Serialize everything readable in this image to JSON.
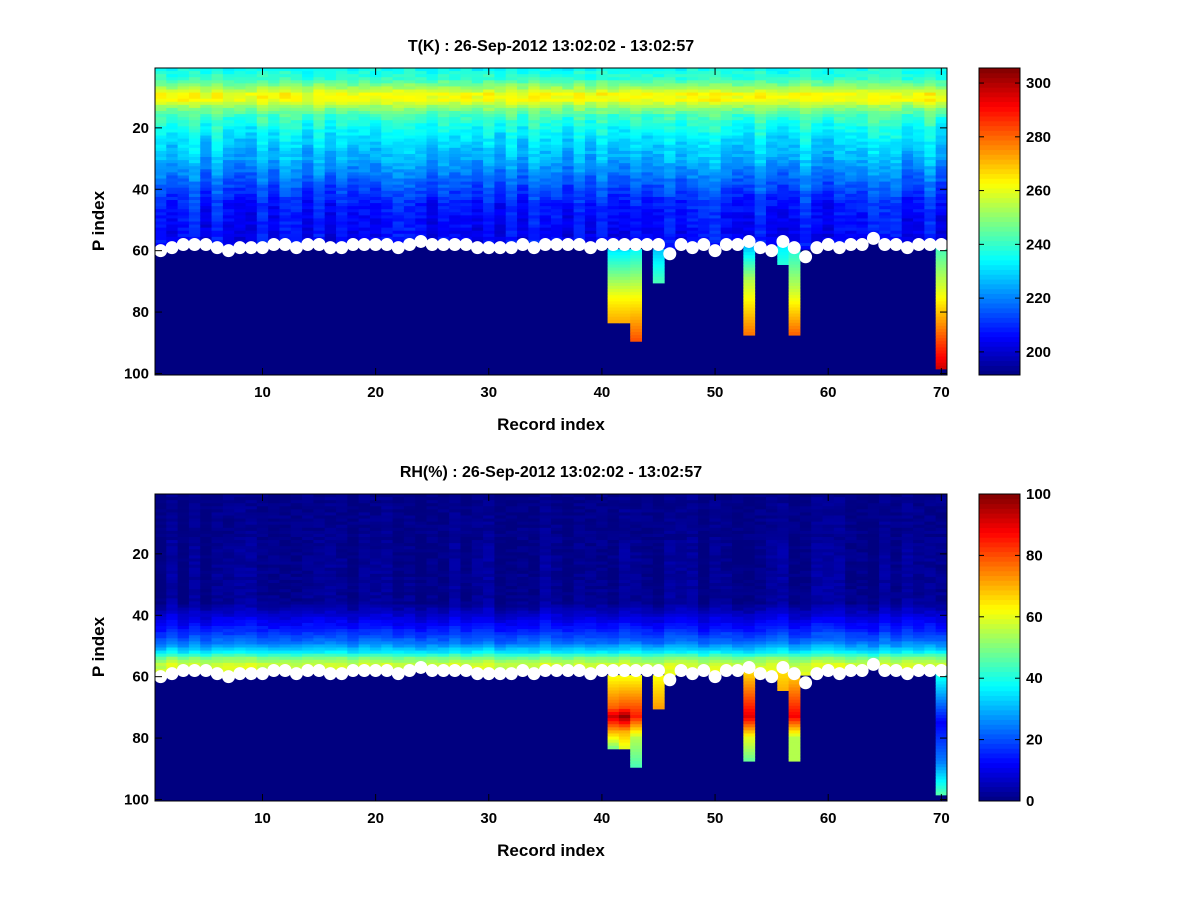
{
  "chart_data": [
    {
      "type": "heatmap",
      "title": "T(K) : 26-Sep-2012 13:02:02 - 13:02:57",
      "xlabel": "Record index",
      "ylabel": "P index",
      "xlim": [
        0.5,
        70.5
      ],
      "ylim": [
        0.5,
        100.5
      ],
      "y_reversed": true,
      "xticks": [
        10,
        20,
        30,
        40,
        50,
        60,
        70
      ],
      "yticks": [
        20,
        40,
        60,
        80,
        100
      ],
      "colormap": "jet",
      "clim": [
        191.4,
        305.6
      ],
      "colorbar_ticks": [
        200,
        220,
        240,
        260,
        280,
        300
      ],
      "below_surface_value": 191.4,
      "mean_profile": [
        [
          1,
          236
        ],
        [
          4,
          240
        ],
        [
          7,
          252
        ],
        [
          9,
          262
        ],
        [
          11,
          262
        ],
        [
          13,
          252
        ],
        [
          16,
          242
        ],
        [
          20,
          236
        ],
        [
          25,
          230
        ],
        [
          30,
          226
        ],
        [
          35,
          220
        ],
        [
          40,
          214
        ],
        [
          45,
          209
        ],
        [
          50,
          207
        ],
        [
          59,
          205
        ]
      ],
      "anomalies": [
        {
          "record": 41,
          "stops": [
            [
              60,
              232
            ],
            [
              75,
              262
            ],
            [
              83,
              272
            ]
          ]
        },
        {
          "record": 42,
          "stops": [
            [
              60,
              232
            ],
            [
              75,
              262
            ],
            [
              83,
              272
            ]
          ]
        },
        {
          "record": 43,
          "stops": [
            [
              60,
              235
            ],
            [
              75,
              262
            ],
            [
              89,
              282
            ]
          ]
        },
        {
          "record": 45,
          "stops": [
            [
              60,
              228
            ],
            [
              70,
              242
            ]
          ]
        },
        {
          "record": 53,
          "stops": [
            [
              58,
              225
            ],
            [
              70,
              255
            ],
            [
              87,
              278
            ]
          ]
        },
        {
          "record": 56,
          "stops": [
            [
              58,
              232
            ],
            [
              64,
              238
            ]
          ]
        },
        {
          "record": 57,
          "stops": [
            [
              60,
              238
            ],
            [
              72,
              255
            ],
            [
              87,
              280
            ]
          ]
        },
        {
          "record": 70,
          "stops": [
            [
              58,
              240
            ],
            [
              75,
              262
            ],
            [
              98,
              296
            ]
          ]
        }
      ]
    },
    {
      "type": "heatmap",
      "title": "RH(%) : 26-Sep-2012 13:02:02 - 13:02:57",
      "xlabel": "Record index",
      "ylabel": "P index",
      "xlim": [
        0.5,
        70.5
      ],
      "ylim": [
        0.5,
        100.5
      ],
      "y_reversed": true,
      "xticks": [
        10,
        20,
        30,
        40,
        50,
        60,
        70
      ],
      "yticks": [
        20,
        40,
        60,
        80,
        100
      ],
      "colormap": "jet",
      "clim": [
        0,
        100
      ],
      "colorbar_ticks": [
        0,
        20,
        40,
        60,
        80,
        100
      ],
      "below_surface_value": 0,
      "mean_profile": [
        [
          1,
          1
        ],
        [
          36,
          2
        ],
        [
          40,
          8
        ],
        [
          45,
          16
        ],
        [
          49,
          24
        ],
        [
          52,
          36
        ],
        [
          54,
          50
        ],
        [
          56,
          57
        ],
        [
          59,
          60
        ]
      ],
      "anomalies": [
        {
          "record": 41,
          "stops": [
            [
              60,
              62
            ],
            [
              70,
              78
            ],
            [
              73,
              92
            ],
            [
              78,
              70
            ],
            [
              83,
              50
            ]
          ]
        },
        {
          "record": 42,
          "stops": [
            [
              60,
              62
            ],
            [
              70,
              80
            ],
            [
              73,
              98
            ],
            [
              78,
              70
            ],
            [
              83,
              60
            ]
          ]
        },
        {
          "record": 43,
          "stops": [
            [
              60,
              62
            ],
            [
              73,
              85
            ],
            [
              80,
              55
            ],
            [
              89,
              45
            ]
          ]
        },
        {
          "record": 45,
          "stops": [
            [
              60,
              62
            ],
            [
              70,
              72
            ]
          ]
        },
        {
          "record": 53,
          "stops": [
            [
              58,
              65
            ],
            [
              73,
              90
            ],
            [
              80,
              60
            ],
            [
              87,
              48
            ]
          ]
        },
        {
          "record": 56,
          "stops": [
            [
              58,
              65
            ],
            [
              64,
              70
            ]
          ]
        },
        {
          "record": 57,
          "stops": [
            [
              60,
              68
            ],
            [
              73,
              88
            ],
            [
              80,
              55
            ],
            [
              87,
              55
            ]
          ]
        },
        {
          "record": 70,
          "stops": [
            [
              58,
              42
            ],
            [
              65,
              30
            ],
            [
              75,
              12
            ],
            [
              88,
              25
            ],
            [
              98,
              45
            ]
          ]
        }
      ]
    }
  ],
  "surface_p": [
    60,
    59,
    58,
    58,
    58,
    59,
    60,
    59,
    59,
    59,
    58,
    58,
    59,
    58,
    58,
    59,
    59,
    58,
    58,
    58,
    58,
    59,
    58,
    57,
    58,
    58,
    58,
    58,
    59,
    59,
    59,
    59,
    58,
    59,
    58,
    58,
    58,
    58,
    59,
    58,
    58,
    58,
    58,
    58,
    58,
    61,
    58,
    59,
    58,
    60,
    58,
    58,
    57,
    59,
    60,
    57,
    59,
    62,
    59,
    58,
    59,
    58,
    58,
    56,
    58,
    58,
    59,
    58,
    58,
    58
  ],
  "surface_marker_color": "#ffffff"
}
